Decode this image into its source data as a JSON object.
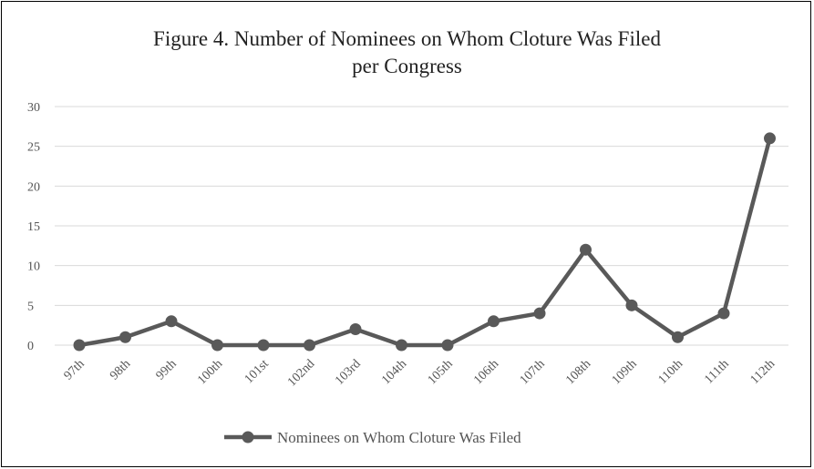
{
  "chart_data": {
    "type": "line",
    "title_line1": "Figure 4. Number of Nominees on Whom Cloture Was Filed",
    "title_line2": "per Congress",
    "categories": [
      "97th",
      "98th",
      "99th",
      "100th",
      "101st",
      "102nd",
      "103rd",
      "104th",
      "105th",
      "106th",
      "107th",
      "108th",
      "109th",
      "110th",
      "111th",
      "112th"
    ],
    "series": [
      {
        "name": "Nominees on Whom Cloture Was Filed",
        "values": [
          0,
          1,
          3,
          0,
          0,
          0,
          2,
          0,
          0,
          3,
          4,
          12,
          5,
          1,
          4,
          26
        ],
        "color": "#595959"
      }
    ],
    "ylim": [
      0,
      30
    ],
    "yticks": [
      "0",
      "5",
      "10",
      "15",
      "20",
      "25",
      "30"
    ],
    "grid": true,
    "legend_position": "bottom"
  }
}
